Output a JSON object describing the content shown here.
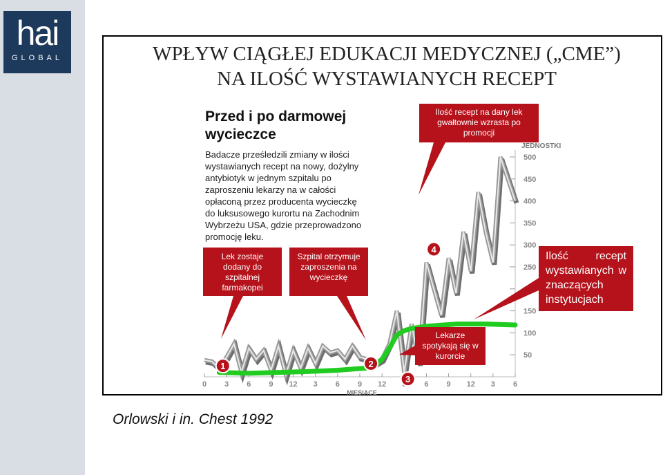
{
  "logo": {
    "word": "hai",
    "sub": "GLOBAL"
  },
  "title": {
    "line1": "WPŁYW CIĄGŁEJ EDUKACJI MEDYCZNEJ („CME”)",
    "line2": "NA ILOŚĆ WYSTAWIANYCH RECEPT"
  },
  "intro": {
    "heading": "Przed i po darmowej wycieczce",
    "body": "Badacze prześledzili zmiany w ilości wystawianych recept na nowy, dożylny antybiotyk w jednym szpitalu po zaproszeniu lekarzy na w całości opłaconą przez producenta wycieczkę do luksusowego kurortu na Zachodnim Wybrzeżu USA, gdzie przeprowadzono promocję leku."
  },
  "callouts": {
    "c1": "Lek zostaje dodany do szpitalnej farmakopei",
    "c2": "Szpital otrzymuje zaproszenia na wycieczkę",
    "c3": "Lekarze spotykają się w kurorcie",
    "c4": "Ilość recept na dany lek gwałtownie wzrasta po promocji",
    "c5": "Ilość recept wystawianych w znaczących instytucjach"
  },
  "source": "Orlowski i in. Chest 1992",
  "colors": {
    "accent": "#b5121b",
    "trend": "#1fcc1f",
    "series": "#9a9a9a"
  },
  "chart_data": {
    "type": "line",
    "ylabel": "JEDNOSTKI",
    "xlabel": "MIESIĄCE",
    "ylim": [
      0,
      500
    ],
    "yticks": [
      50,
      100,
      150,
      200,
      250,
      300,
      350,
      400,
      450,
      500
    ],
    "xticks": [
      "0",
      "3",
      "6",
      "9",
      "12",
      "3",
      "6",
      "9",
      "12",
      "3",
      "6",
      "9",
      "12",
      "3",
      "6"
    ],
    "markers": [
      {
        "label": "1",
        "x": 2.5,
        "y": 25
      },
      {
        "label": "2",
        "x": 22.5,
        "y": 30
      },
      {
        "label": "3",
        "x": 27.5,
        "y": -5
      },
      {
        "label": "4",
        "x": 31,
        "y": 290
      }
    ],
    "series": [
      {
        "x": [
          0,
          1,
          2,
          3,
          4,
          5,
          6,
          7,
          8,
          9,
          10,
          11,
          12,
          13,
          14,
          15,
          16,
          17,
          18,
          19,
          20,
          21,
          22,
          23,
          24,
          25,
          26,
          27,
          28,
          29,
          30,
          31,
          32,
          33,
          34,
          35,
          36,
          37,
          38,
          39,
          40,
          41,
          42
        ],
        "values": [
          38,
          35,
          20,
          45,
          75,
          10,
          65,
          40,
          60,
          15,
          70,
          5,
          60,
          20,
          65,
          30,
          70,
          55,
          60,
          40,
          70,
          45,
          40,
          30,
          40,
          75,
          150,
          10,
          120,
          30,
          260,
          200,
          140,
          270,
          190,
          330,
          240,
          420,
          330,
          260,
          500,
          450,
          400
        ]
      },
      {
        "x": [
          2,
          6,
          10,
          14,
          18,
          22,
          23,
          24,
          25,
          26,
          27,
          28,
          30,
          34,
          38,
          42
        ],
        "values": [
          10,
          8,
          10,
          12,
          15,
          20,
          25,
          40,
          65,
          95,
          105,
          110,
          115,
          120,
          120,
          118
        ]
      }
    ]
  }
}
